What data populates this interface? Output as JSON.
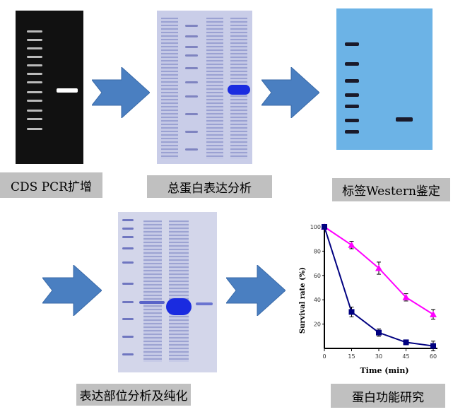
{
  "steps": [
    {
      "label": "CDS PCR扩增"
    },
    {
      "label": "总蛋白表达分析"
    },
    {
      "label": "标签Western鉴定"
    },
    {
      "label": "表达部位分析及纯化"
    },
    {
      "label": "蛋白功能研究"
    }
  ],
  "arrow_color": "#4a7fc1",
  "chart_data": {
    "type": "line",
    "xlabel": "Time (min)",
    "ylabel": "Survival rate (%)",
    "x": [
      0,
      15,
      30,
      45,
      60
    ],
    "xticks": [
      "0",
      "15",
      "30",
      "45",
      "60"
    ],
    "yticks": [
      "20",
      "40",
      "60",
      "80",
      "100"
    ],
    "ylim": [
      0,
      100
    ],
    "series": [
      {
        "color": "#ff00ff",
        "marker": "triangle",
        "values": [
          100,
          85,
          66,
          42,
          28
        ],
        "errors": [
          0,
          3,
          5,
          3,
          4
        ]
      },
      {
        "color": "#000080",
        "marker": "square",
        "values": [
          100,
          30,
          13,
          5,
          2
        ],
        "errors": [
          0,
          4,
          3,
          2,
          4
        ]
      }
    ]
  }
}
